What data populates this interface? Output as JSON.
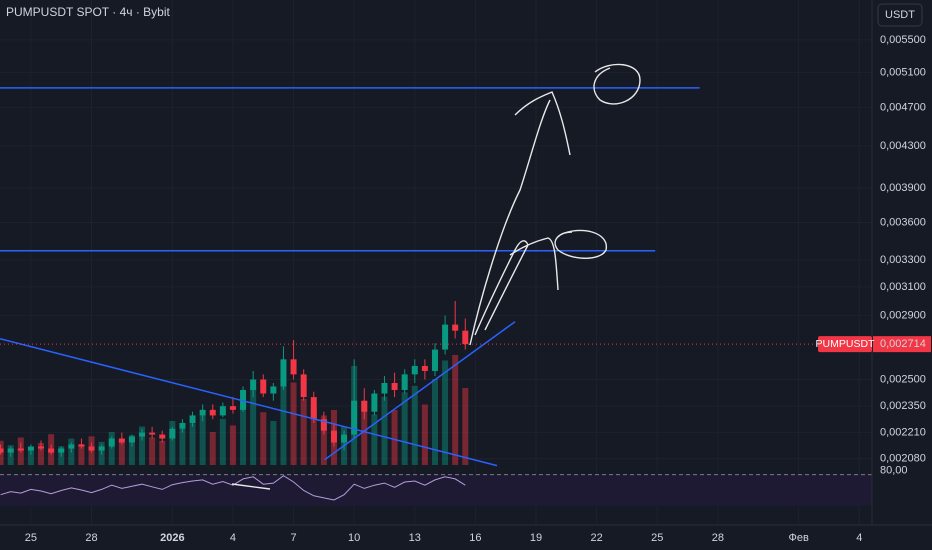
{
  "chart_data": {
    "type": "candlestick",
    "title": "PUMPUSDT SPOT · 4ч · Bybit",
    "currency": "USDT",
    "log_scale": true,
    "grid": true,
    "up_color": "#089981",
    "down_color": "#f23645",
    "x": [
      -1.5,
      -1,
      -0.5,
      0,
      0.5,
      1,
      1.5,
      2,
      2.5,
      3,
      3.5,
      4,
      4.5,
      5,
      5.5,
      6,
      6.5,
      7,
      7.5,
      8,
      8.5,
      9,
      9.5,
      10,
      10.5,
      11,
      11.5,
      12,
      12.5,
      13,
      13.5,
      14,
      14.5,
      15,
      15.5,
      16,
      16.5,
      17,
      17.5,
      18,
      18.5,
      19,
      19.5,
      20,
      20.5,
      21,
      21.5
    ],
    "open": [
      0.00213,
      0.00211,
      0.00213,
      0.00212,
      0.00214,
      0.00213,
      0.00211,
      0.00213,
      0.00215,
      0.00214,
      0.00212,
      0.00214,
      0.00218,
      0.00216,
      0.00219,
      0.00221,
      0.0022,
      0.00218,
      0.00223,
      0.00226,
      0.0023,
      0.00233,
      0.0023,
      0.00235,
      0.00233,
      0.00244,
      0.0025,
      0.00242,
      0.00246,
      0.00262,
      0.00253,
      0.0024,
      0.00228,
      0.00222,
      0.00216,
      0.0022,
      0.00238,
      0.00232,
      0.00242,
      0.00248,
      0.00244,
      0.00253,
      0.00258,
      0.00255,
      0.00268,
      0.00284,
      0.0028
    ],
    "high": [
      0.00215,
      0.00214,
      0.00216,
      0.00215,
      0.00217,
      0.00215,
      0.00214,
      0.00216,
      0.00218,
      0.00216,
      0.00215,
      0.00219,
      0.00221,
      0.0022,
      0.00223,
      0.00224,
      0.00222,
      0.00224,
      0.00228,
      0.00232,
      0.00236,
      0.00236,
      0.00237,
      0.0024,
      0.00246,
      0.00255,
      0.00253,
      0.00248,
      0.0027,
      0.00274,
      0.00256,
      0.00243,
      0.00232,
      0.00226,
      0.00222,
      0.00262,
      0.00245,
      0.00244,
      0.00252,
      0.00254,
      0.00256,
      0.00262,
      0.00262,
      0.00272,
      0.0029,
      0.003,
      0.00288
    ],
    "low": [
      0.0021,
      0.00209,
      0.00211,
      0.0021,
      0.00212,
      0.0021,
      0.00209,
      0.00211,
      0.00213,
      0.00211,
      0.0021,
      0.00213,
      0.00215,
      0.00214,
      0.00217,
      0.00218,
      0.00216,
      0.00217,
      0.00221,
      0.00224,
      0.00227,
      0.00228,
      0.00229,
      0.00231,
      0.00232,
      0.0024,
      0.0024,
      0.00238,
      0.00244,
      0.0025,
      0.00238,
      0.00226,
      0.0022,
      0.00214,
      0.00212,
      0.00218,
      0.00228,
      0.0023,
      0.00238,
      0.0024,
      0.00242,
      0.00248,
      0.0025,
      0.00252,
      0.00265,
      0.00275,
      0.00268
    ],
    "close": [
      0.00211,
      0.00213,
      0.00212,
      0.00214,
      0.00213,
      0.00211,
      0.00213,
      0.00215,
      0.00214,
      0.00212,
      0.00214,
      0.00218,
      0.00216,
      0.00219,
      0.00221,
      0.0022,
      0.00218,
      0.00223,
      0.00226,
      0.0023,
      0.00233,
      0.0023,
      0.00235,
      0.00233,
      0.00244,
      0.0025,
      0.00242,
      0.00246,
      0.00262,
      0.00253,
      0.0024,
      0.00228,
      0.00222,
      0.00216,
      0.0022,
      0.00238,
      0.00232,
      0.00242,
      0.00248,
      0.00244,
      0.00253,
      0.00258,
      0.00255,
      0.00268,
      0.00284,
      0.0028,
      0.002714
    ],
    "volume": [
      22,
      18,
      25,
      15,
      20,
      28,
      17,
      24,
      19,
      26,
      21,
      30,
      23,
      27,
      35,
      25,
      22,
      40,
      33,
      38,
      45,
      30,
      42,
      36,
      55,
      70,
      48,
      40,
      80,
      75,
      60,
      52,
      45,
      50,
      35,
      90,
      58,
      46,
      62,
      50,
      66,
      72,
      55,
      78,
      95,
      100,
      70
    ],
    "rsi": {
      "values": [
        42,
        48,
        45,
        52,
        49,
        44,
        50,
        55,
        51,
        46,
        52,
        60,
        54,
        58,
        62,
        57,
        52,
        61,
        65,
        68,
        70,
        62,
        67,
        60,
        72,
        76,
        62,
        64,
        78,
        66,
        50,
        40,
        36,
        32,
        42,
        62,
        54,
        60,
        64,
        56,
        66,
        68,
        60,
        70,
        76,
        72,
        60
      ],
      "ylim": [
        15,
        85
      ],
      "yticks": [
        {
          "value": 80,
          "label": "80,00"
        }
      ]
    },
    "xlim": [
      -1.53,
      41.63
    ],
    "xticks": [
      {
        "value": 0,
        "label": "25"
      },
      {
        "value": 3,
        "label": "28"
      },
      {
        "value": 7,
        "label": "2026"
      },
      {
        "value": 10,
        "label": "4"
      },
      {
        "value": 13,
        "label": "7"
      },
      {
        "value": 16,
        "label": "10"
      },
      {
        "value": 19,
        "label": "13"
      },
      {
        "value": 22,
        "label": "16"
      },
      {
        "value": 25,
        "label": "19"
      },
      {
        "value": 28,
        "label": "22"
      },
      {
        "value": 31,
        "label": "25"
      },
      {
        "value": 34,
        "label": "28"
      },
      {
        "value": 38,
        "label": "Фев"
      },
      {
        "value": 41,
        "label": "4"
      }
    ],
    "ylim": [
      0.00205,
      0.0058
    ],
    "yticks": [
      {
        "value": 0.00208,
        "label": "0,002080"
      },
      {
        "value": 0.00221,
        "label": "0,002210"
      },
      {
        "value": 0.00235,
        "label": "0,002350"
      },
      {
        "value": 0.0025,
        "label": "0,002500"
      },
      {
        "value": 0.0029,
        "label": "0,002900"
      },
      {
        "value": 0.0031,
        "label": "0,003100"
      },
      {
        "value": 0.0033,
        "label": "0,003300"
      },
      {
        "value": 0.0036,
        "label": "0,003600"
      },
      {
        "value": 0.0039,
        "label": "0,003900"
      },
      {
        "value": 0.0043,
        "label": "0,004300"
      },
      {
        "value": 0.0047,
        "label": "0,004700"
      },
      {
        "value": 0.0051,
        "label": "0,005100"
      },
      {
        "value": 0.0055,
        "label": "0,005500"
      }
    ],
    "last_price": {
      "symbol": "PUMPUSDT",
      "value": 0.002714,
      "label": "0,002714",
      "color": "#f23645"
    },
    "drawings": [
      {
        "color": "#2962ff",
        "x": [
          -1.53,
          33.1
        ],
        "y": [
          0.00492,
          0.00492
        ]
      },
      {
        "color": "#2962ff",
        "x": [
          -1.53,
          30.9
        ],
        "y": [
          0.003371,
          0.003371
        ]
      },
      {
        "color": "#2962ff",
        "x": [
          -1.53,
          23.07
        ],
        "y": [
          0.002748,
          0.002047
        ]
      },
      {
        "color": "#2962ff",
        "x": [
          14.55,
          23.96
        ],
        "y": [
          0.002076,
          0.002859
        ]
      }
    ]
  }
}
